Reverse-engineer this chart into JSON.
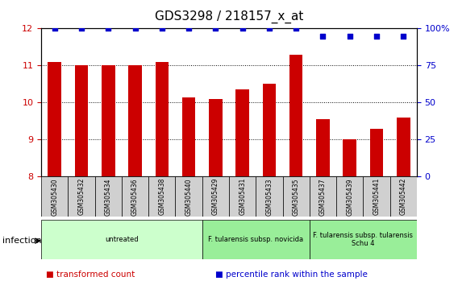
{
  "title": "GDS3298 / 218157_x_at",
  "samples": [
    "GSM305430",
    "GSM305432",
    "GSM305434",
    "GSM305436",
    "GSM305438",
    "GSM305440",
    "GSM305429",
    "GSM305431",
    "GSM305433",
    "GSM305435",
    "GSM305437",
    "GSM305439",
    "GSM305441",
    "GSM305442"
  ],
  "transformed_counts": [
    11.1,
    11.0,
    11.0,
    11.0,
    11.1,
    10.15,
    10.1,
    10.35,
    10.5,
    11.3,
    9.55,
    9.0,
    9.3,
    9.6
  ],
  "percentile_ranks": [
    100,
    100,
    100,
    100,
    100,
    100,
    100,
    100,
    100,
    100,
    95,
    95,
    95,
    95
  ],
  "bar_color": "#cc0000",
  "dot_color": "#0000cc",
  "ylim_left": [
    8,
    12
  ],
  "ylim_right": [
    0,
    100
  ],
  "yticks_left": [
    8,
    9,
    10,
    11,
    12
  ],
  "yticks_right": [
    0,
    25,
    50,
    75,
    100
  ],
  "ytick_right_labels": [
    "0",
    "25",
    "50",
    "75",
    "100%"
  ],
  "groups": [
    {
      "label": "untreated",
      "start": 0,
      "end": 6,
      "color": "#ccffcc"
    },
    {
      "label": "F. tularensis subsp. novicida",
      "start": 6,
      "end": 10,
      "color": "#99ee99"
    },
    {
      "label": "F. tularensis subsp. tularensis\nSchu 4",
      "start": 10,
      "end": 14,
      "color": "#99ee99"
    }
  ],
  "infection_label": "infection",
  "legend_items": [
    {
      "color": "#cc0000",
      "label": "transformed count"
    },
    {
      "color": "#0000cc",
      "label": "percentile rank within the sample"
    }
  ],
  "plot_bg_color": "#ffffff",
  "tick_label_color_left": "#cc0000",
  "tick_label_color_right": "#0000cc",
  "sample_box_color": "#d0d0d0"
}
